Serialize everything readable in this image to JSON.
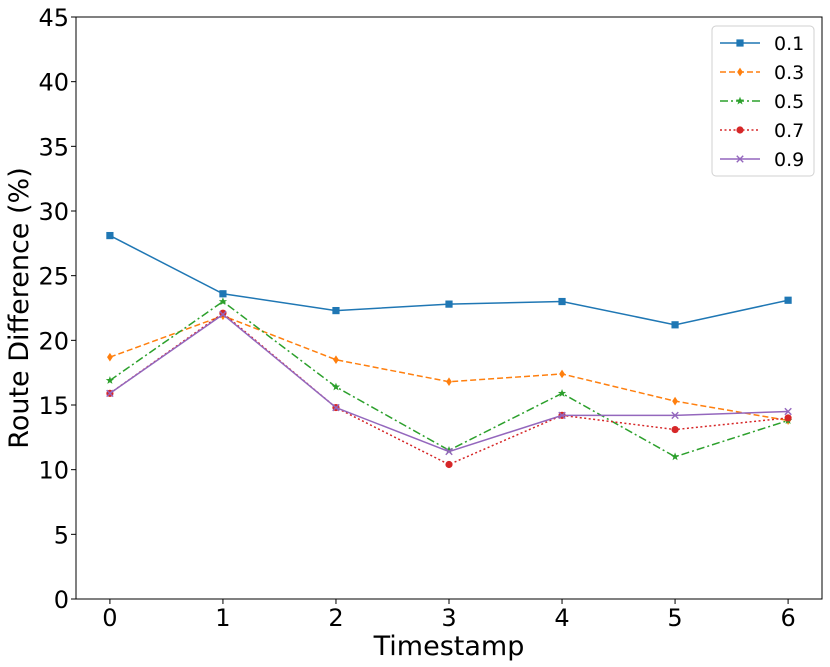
{
  "chart_data": {
    "type": "line",
    "title": "",
    "xlabel": "Timestamp",
    "ylabel": "Route Difference (%)",
    "x": [
      0,
      1,
      2,
      3,
      4,
      5,
      6
    ],
    "xticks": [
      "0",
      "1",
      "2",
      "3",
      "4",
      "5",
      "6"
    ],
    "yticks": [
      "0",
      "5",
      "10",
      "15",
      "20",
      "25",
      "30",
      "35",
      "40",
      "45"
    ],
    "xlim": [
      -0.3,
      6.3
    ],
    "ylim": [
      0,
      45
    ],
    "grid": false,
    "legend_position": "top-right",
    "series": [
      {
        "name": "0.1",
        "color": "#1f77b4",
        "linestyle": "solid",
        "marker": "square",
        "values": [
          28.1,
          23.6,
          22.3,
          22.8,
          23.0,
          21.2,
          23.1
        ]
      },
      {
        "name": "0.3",
        "color": "#ff7f0e",
        "linestyle": "dashed",
        "marker": "diamond",
        "values": [
          18.7,
          21.9,
          18.5,
          16.8,
          17.4,
          15.3,
          13.8
        ]
      },
      {
        "name": "0.5",
        "color": "#2ca02c",
        "linestyle": "dashdot",
        "marker": "star",
        "values": [
          16.9,
          23.0,
          16.4,
          11.5,
          15.9,
          11.0,
          13.8
        ]
      },
      {
        "name": "0.7",
        "color": "#d62728",
        "linestyle": "dotted",
        "marker": "circle",
        "values": [
          15.9,
          22.1,
          14.8,
          10.4,
          14.2,
          13.1,
          14.0
        ]
      },
      {
        "name": "0.9",
        "color": "#9467bd",
        "linestyle": "solid",
        "marker": "x",
        "values": [
          15.9,
          22.0,
          14.8,
          11.4,
          14.2,
          14.2,
          14.5
        ]
      }
    ]
  }
}
